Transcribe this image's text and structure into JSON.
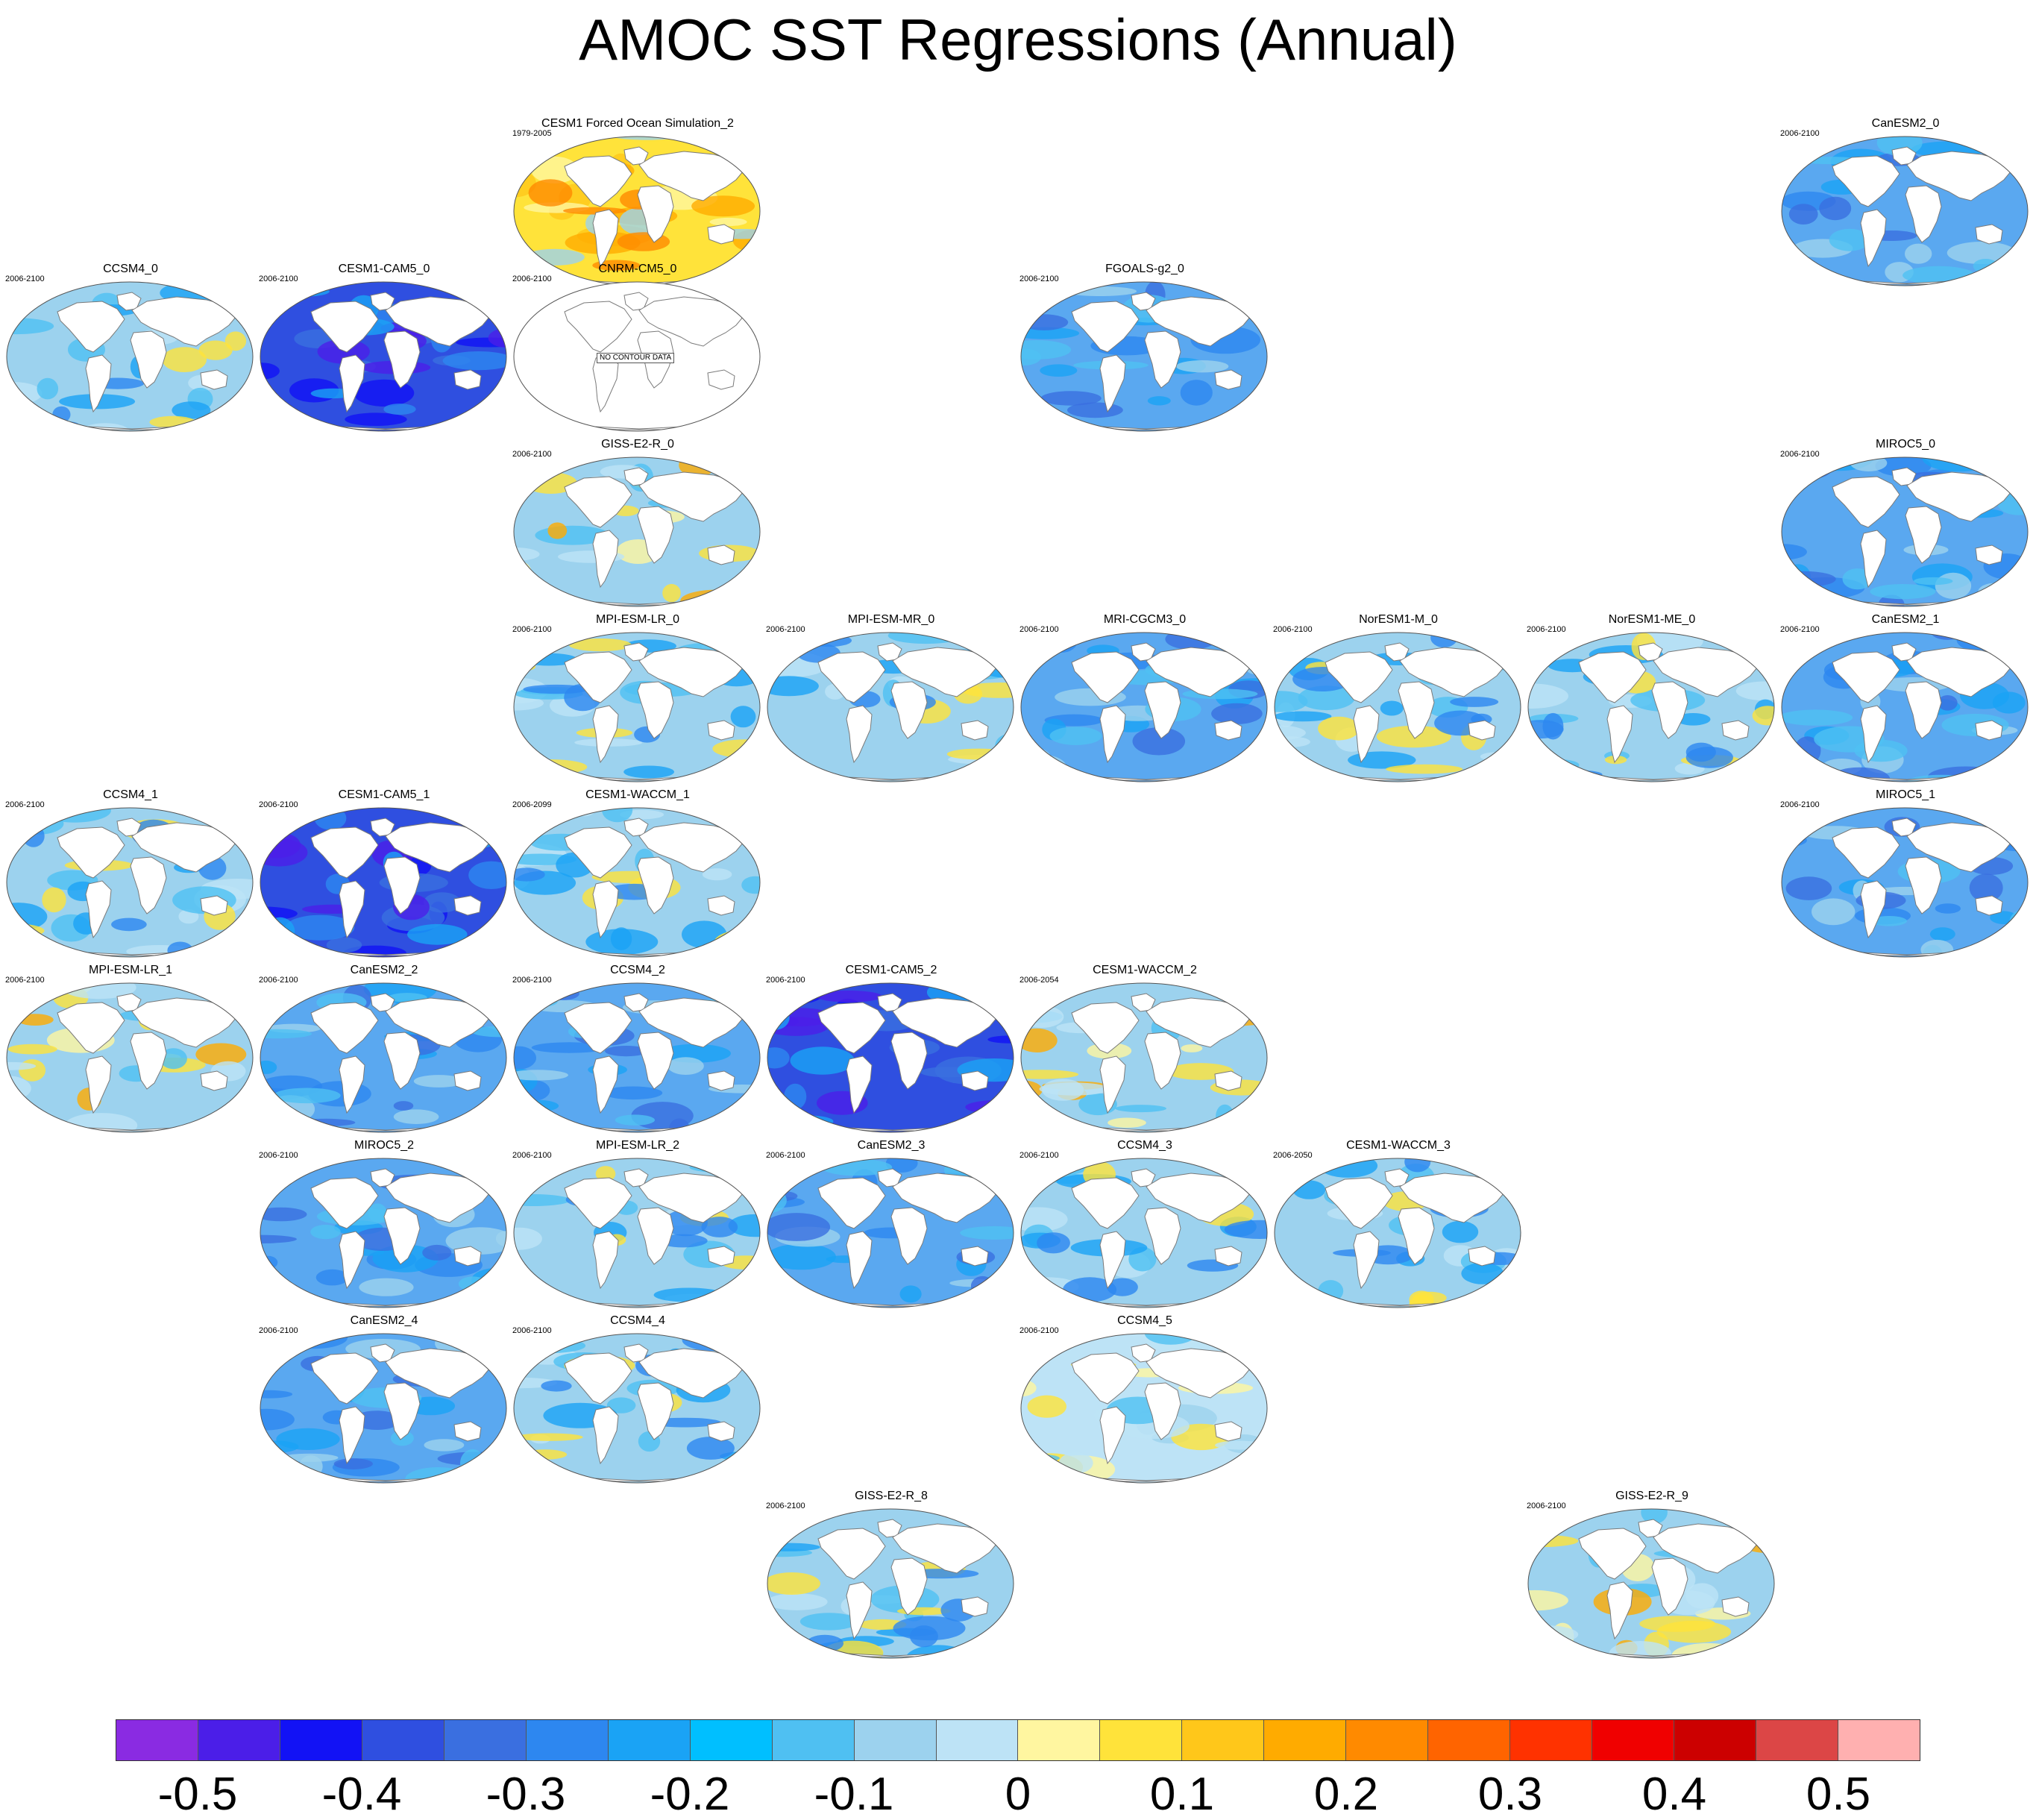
{
  "title": "AMOC SST Regressions (Annual)",
  "no_data_label": "NO CONTOUR DATA",
  "colors": {
    "ocean_base": "#9fd0ee",
    "land": "#ffffff",
    "coast": "#7a7a7a"
  },
  "colorbar": {
    "colors": [
      "#8a2be2",
      "#4b1ee8",
      "#1212f5",
      "#2f4fe0",
      "#3a6fe0",
      "#2d87f0",
      "#1aa3f5",
      "#00bfff",
      "#4fc0f2",
      "#9cd2ee",
      "#bde3f6",
      "#fff6a0",
      "#ffe33a",
      "#ffc71a",
      "#ffab00",
      "#ff8a00",
      "#ff6400",
      "#ff3200",
      "#f00000",
      "#cc0000",
      "#dc4646",
      "#ffb0b0"
    ],
    "labels": [
      "-0.5",
      "-0.4",
      "-0.3",
      "-0.2",
      "-0.1",
      "0",
      "0.1",
      "0.2",
      "0.3",
      "0.4",
      "0.5"
    ]
  },
  "panels": [
    {
      "title": "CESM1 Forced Ocean Simulation_2",
      "range": "1979-2005",
      "tone": "warm",
      "row": 0,
      "col": 2
    },
    {
      "title": "CanESM2_0",
      "range": "2006-2100",
      "tone": "blue",
      "row": 0,
      "col": 7
    },
    {
      "title": "CCSM4_0",
      "range": "2006-2100",
      "tone": "light",
      "row": 1,
      "col": 0
    },
    {
      "title": "CESM1-CAM5_0",
      "range": "2006-2100",
      "tone": "deep",
      "row": 1,
      "col": 1
    },
    {
      "title": "CNRM-CM5_0",
      "range": "2006-2100",
      "tone": "empty",
      "row": 1,
      "col": 2
    },
    {
      "title": "FGOALS-g2_0",
      "range": "2006-2100",
      "tone": "blue",
      "row": 1,
      "col": 4
    },
    {
      "title": "GISS-E2-R_0",
      "range": "2006-2100",
      "tone": "mixed",
      "row": 2,
      "col": 2
    },
    {
      "title": "MIROC5_0",
      "range": "2006-2100",
      "tone": "blue",
      "row": 2,
      "col": 7
    },
    {
      "title": "MPI-ESM-LR_0",
      "range": "2006-2100",
      "tone": "light",
      "row": 3,
      "col": 2
    },
    {
      "title": "MPI-ESM-MR_0",
      "range": "2006-2100",
      "tone": "light",
      "row": 3,
      "col": 3
    },
    {
      "title": "MRI-CGCM3_0",
      "range": "2006-2100",
      "tone": "blue",
      "row": 3,
      "col": 4
    },
    {
      "title": "NorESM1-M_0",
      "range": "2006-2100",
      "tone": "light",
      "row": 3,
      "col": 5
    },
    {
      "title": "NorESM1-ME_0",
      "range": "2006-2100",
      "tone": "light",
      "row": 3,
      "col": 6
    },
    {
      "title": "CanESM2_1",
      "range": "2006-2100",
      "tone": "blue",
      "row": 3,
      "col": 7
    },
    {
      "title": "CCSM4_1",
      "range": "2006-2100",
      "tone": "light",
      "row": 4,
      "col": 0
    },
    {
      "title": "CESM1-CAM5_1",
      "range": "2006-2100",
      "tone": "deep",
      "row": 4,
      "col": 1
    },
    {
      "title": "CESM1-WACCM_1",
      "range": "2006-2099",
      "tone": "light",
      "row": 4,
      "col": 2
    },
    {
      "title": "MIROC5_1",
      "range": "2006-2100",
      "tone": "blue",
      "row": 4,
      "col": 7
    },
    {
      "title": "MPI-ESM-LR_1",
      "range": "2006-2100",
      "tone": "mixed",
      "row": 5,
      "col": 0
    },
    {
      "title": "CanESM2_2",
      "range": "2006-2100",
      "tone": "blue",
      "row": 5,
      "col": 1
    },
    {
      "title": "CCSM4_2",
      "range": "2006-2100",
      "tone": "blue",
      "row": 5,
      "col": 2
    },
    {
      "title": "CESM1-CAM5_2",
      "range": "2006-2100",
      "tone": "deep",
      "row": 5,
      "col": 3
    },
    {
      "title": "CESM1-WACCM_2",
      "range": "2006-2054",
      "tone": "mixed",
      "row": 5,
      "col": 4
    },
    {
      "title": "MIROC5_2",
      "range": "2006-2100",
      "tone": "blue",
      "row": 6,
      "col": 1
    },
    {
      "title": "MPI-ESM-LR_2",
      "range": "2006-2100",
      "tone": "light",
      "row": 6,
      "col": 2
    },
    {
      "title": "CanESM2_3",
      "range": "2006-2100",
      "tone": "blue",
      "row": 6,
      "col": 3
    },
    {
      "title": "CCSM4_3",
      "range": "2006-2100",
      "tone": "light",
      "row": 6,
      "col": 4
    },
    {
      "title": "CESM1-WACCM_3",
      "range": "2006-2050",
      "tone": "light",
      "row": 6,
      "col": 5
    },
    {
      "title": "CanESM2_4",
      "range": "2006-2100",
      "tone": "blue",
      "row": 7,
      "col": 1
    },
    {
      "title": "CCSM4_4",
      "range": "2006-2100",
      "tone": "light",
      "row": 7,
      "col": 2
    },
    {
      "title": "CCSM4_5",
      "range": "2006-2100",
      "tone": "pale",
      "row": 7,
      "col": 4
    },
    {
      "title": "GISS-E2-R_8",
      "range": "2006-2100",
      "tone": "light",
      "row": 8,
      "col": 3
    },
    {
      "title": "GISS-E2-R_9",
      "range": "2006-2100",
      "tone": "mixed",
      "row": 8,
      "col": 6
    }
  ]
}
